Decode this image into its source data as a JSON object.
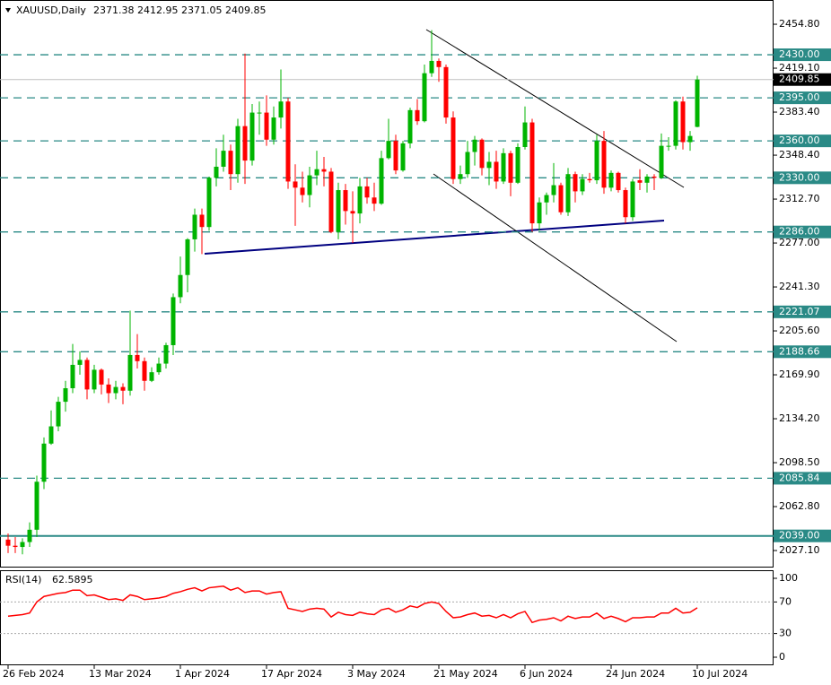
{
  "chart_data": {
    "type": "candlestick",
    "symbol": "XAUUSD,Daily",
    "up_color": "#00b400",
    "down_color": "#ff0000",
    "level_color": "#2a8a86",
    "ylim": [
      2014,
      2474.5
    ],
    "yticks": [
      {
        "value": 2454.8,
        "label": "2454.80"
      },
      {
        "value": 2419.1,
        "label": "2419.10"
      },
      {
        "value": 2383.4,
        "label": "2383.40"
      },
      {
        "value": 2348.4,
        "label": "2348.40"
      },
      {
        "value": 2312.7,
        "label": "2312.70"
      },
      {
        "value": 2277,
        "label": "2277.00"
      },
      {
        "value": 2241.3,
        "label": "2241.30"
      },
      {
        "value": 2205.6,
        "label": "2205.60"
      },
      {
        "value": 2169.9,
        "label": "2169.90"
      },
      {
        "value": 2134.2,
        "label": "2134.20"
      },
      {
        "value": 2098.5,
        "label": "2098.50"
      },
      {
        "value": 2062.8,
        "label": "2062.80"
      },
      {
        "value": 2027.1,
        "label": "2027.10"
      }
    ],
    "levels": [
      {
        "value": 2430,
        "label": "2430.00"
      },
      {
        "value": 2395,
        "label": "2395.00"
      },
      {
        "value": 2360,
        "label": "2360.00"
      },
      {
        "value": 2330,
        "label": "2330.00"
      },
      {
        "value": 2286,
        "label": "2286.00"
      },
      2221.07,
      2188.66,
      2085.84,
      {
        "value": 2039,
        "label": "2039.00"
      }
    ],
    "solid_level": 8,
    "current_price": 2409.85,
    "categories": [
      "26 Feb 2024",
      null,
      null,
      null,
      null,
      null,
      null,
      null,
      null,
      null,
      null,
      null,
      "13 Mar 2024",
      null,
      null,
      null,
      null,
      null,
      null,
      null,
      null,
      null,
      null,
      null,
      "1 Apr 2024",
      null,
      null,
      null,
      null,
      null,
      null,
      null,
      null,
      null,
      null,
      null,
      "17 Apr 2024",
      null,
      null,
      null,
      null,
      null,
      null,
      null,
      null,
      null,
      null,
      null,
      "3 May 2024",
      null,
      null,
      null,
      null,
      null,
      null,
      null,
      null,
      null,
      null,
      null,
      "21 May 2024",
      null,
      null,
      null,
      null,
      null,
      null,
      null,
      null,
      null,
      null,
      null,
      "6 Jun 2024",
      null,
      null,
      null,
      null,
      null,
      null,
      null,
      null,
      null,
      null,
      null,
      "24 Jun 2024",
      null,
      null,
      null,
      null,
      null,
      null,
      null,
      null,
      null,
      null,
      null,
      "10 Jul 2024"
    ],
    "ohlc": [
      [
        2036,
        2041,
        2025,
        2031
      ],
      [
        2031,
        2038,
        2025,
        2030
      ],
      [
        2030,
        2037,
        2024,
        2034
      ],
      [
        2034,
        2050,
        2030,
        2044
      ],
      [
        2044,
        2088,
        2038,
        2083
      ],
      [
        2083,
        2119,
        2077,
        2114
      ],
      [
        2114,
        2141,
        2113,
        2128
      ],
      [
        2128,
        2152,
        2124,
        2148
      ],
      [
        2148,
        2165,
        2140,
        2159
      ],
      [
        2159,
        2195,
        2155,
        2178
      ],
      [
        2178,
        2189,
        2170,
        2182
      ],
      [
        2182,
        2184,
        2150,
        2158
      ],
      [
        2158,
        2178,
        2155,
        2174
      ],
      [
        2174,
        2175,
        2154,
        2162
      ],
      [
        2162,
        2167,
        2147,
        2155
      ],
      [
        2155,
        2165,
        2150,
        2160
      ],
      [
        2160,
        2163,
        2146,
        2157
      ],
      [
        2157,
        2222,
        2153,
        2186
      ],
      [
        2186,
        2203,
        2175,
        2181
      ],
      [
        2181,
        2184,
        2157,
        2165
      ],
      [
        2165,
        2176,
        2164,
        2172
      ],
      [
        2172,
        2184,
        2170,
        2179
      ],
      [
        2179,
        2196,
        2175,
        2194
      ],
      [
        2194,
        2236,
        2186,
        2233
      ],
      [
        2233,
        2266,
        2228,
        2251
      ],
      [
        2251,
        2281,
        2237,
        2280
      ],
      [
        2280,
        2305,
        2270,
        2300
      ],
      [
        2300,
        2305,
        2268,
        2290
      ],
      [
        2290,
        2331,
        2287,
        2330
      ],
      [
        2330,
        2354,
        2323,
        2339
      ],
      [
        2339,
        2365,
        2335,
        2352
      ],
      [
        2352,
        2357,
        2320,
        2333
      ],
      [
        2333,
        2378,
        2326,
        2372
      ],
      [
        2372,
        2431,
        2325,
        2344
      ],
      [
        2344,
        2390,
        2340,
        2383
      ],
      [
        2383,
        2392,
        2365,
        2383
      ],
      [
        2383,
        2397,
        2356,
        2361
      ],
      [
        2361,
        2388,
        2357,
        2379
      ],
      [
        2379,
        2418,
        2370,
        2392
      ],
      [
        2392,
        2395,
        2321,
        2327
      ],
      [
        2327,
        2341,
        2291,
        2322
      ],
      [
        2322,
        2335,
        2310,
        2316
      ],
      [
        2316,
        2339,
        2306,
        2332
      ],
      [
        2332,
        2352,
        2324,
        2337
      ],
      [
        2337,
        2347,
        2323,
        2335
      ],
      [
        2335,
        2338,
        2285,
        2286
      ],
      [
        2286,
        2326,
        2280,
        2320
      ],
      [
        2320,
        2325,
        2292,
        2303
      ],
      [
        2303,
        2319,
        2277,
        2301
      ],
      [
        2301,
        2330,
        2293,
        2323
      ],
      [
        2323,
        2330,
        2309,
        2314
      ],
      [
        2314,
        2326,
        2303,
        2309
      ],
      [
        2309,
        2352,
        2308,
        2346
      ],
      [
        2346,
        2378,
        2345,
        2360
      ],
      [
        2360,
        2365,
        2333,
        2336
      ],
      [
        2336,
        2360,
        2335,
        2358
      ],
      [
        2358,
        2387,
        2354,
        2385
      ],
      [
        2385,
        2394,
        2373,
        2376
      ],
      [
        2376,
        2422,
        2375,
        2415
      ],
      [
        2415,
        2450,
        2412,
        2425
      ],
      [
        2425,
        2427,
        2408,
        2420
      ],
      [
        2420,
        2422,
        2374,
        2379
      ],
      [
        2379,
        2384,
        2325,
        2329
      ],
      [
        2329,
        2340,
        2325,
        2333
      ],
      [
        2333,
        2360,
        2330,
        2351
      ],
      [
        2351,
        2364,
        2340,
        2361
      ],
      [
        2361,
        2362,
        2332,
        2338
      ],
      [
        2338,
        2351,
        2324,
        2343
      ],
      [
        2343,
        2352,
        2321,
        2327
      ],
      [
        2327,
        2354,
        2325,
        2350
      ],
      [
        2350,
        2352,
        2315,
        2326
      ],
      [
        2326,
        2358,
        2325,
        2355
      ],
      [
        2355,
        2388,
        2353,
        2375
      ],
      [
        2375,
        2378,
        2286,
        2293
      ],
      [
        2293,
        2314,
        2287,
        2310
      ],
      [
        2310,
        2318,
        2300,
        2316
      ],
      [
        2316,
        2342,
        2310,
        2324
      ],
      [
        2324,
        2326,
        2300,
        2302
      ],
      [
        2302,
        2338,
        2299,
        2333
      ],
      [
        2333,
        2335,
        2310,
        2319
      ],
      [
        2319,
        2333,
        2316,
        2329
      ],
      [
        2329,
        2334,
        2326,
        2328
      ],
      [
        2328,
        2365,
        2325,
        2360
      ],
      [
        2360,
        2368,
        2317,
        2322
      ],
      [
        2322,
        2336,
        2319,
        2334
      ],
      [
        2334,
        2335,
        2318,
        2320
      ],
      [
        2320,
        2322,
        2293,
        2298
      ],
      [
        2298,
        2329,
        2295,
        2327
      ],
      [
        2328,
        2337,
        2320,
        2326
      ],
      [
        2326,
        2333,
        2318,
        2331
      ],
      [
        2331,
        2333,
        2320,
        2330
      ],
      [
        2330,
        2366,
        2329,
        2356
      ],
      [
        2356,
        2363,
        2352,
        2356
      ],
      [
        2356,
        2393,
        2353,
        2392
      ],
      [
        2392,
        2396,
        2353,
        2359
      ],
      [
        2359,
        2368,
        2352,
        2364
      ],
      [
        2371.38,
        2412.95,
        2371.05,
        2409.85
      ]
    ],
    "rsi": {
      "name": "RSI(14)",
      "color": "#ff0000",
      "ylim": [
        0,
        100
      ],
      "yticks": [
        100,
        70,
        30,
        0
      ],
      "levels": [
        70,
        30
      ],
      "values": [
        52,
        53,
        54,
        56,
        70,
        77,
        79,
        81,
        82,
        85,
        85,
        78,
        79,
        76,
        73,
        74,
        72,
        79,
        77,
        73,
        74,
        75,
        77,
        81,
        83,
        86,
        88,
        84,
        88,
        89,
        90,
        85,
        88,
        82,
        84,
        84,
        80,
        82,
        83,
        62,
        60,
        58,
        61,
        62,
        61,
        51,
        57,
        54,
        53,
        57,
        55,
        54,
        60,
        62,
        57,
        60,
        65,
        63,
        68,
        70,
        68,
        58,
        50,
        51,
        54,
        56,
        52,
        53,
        50,
        54,
        50,
        55,
        58,
        44,
        47,
        48,
        50,
        46,
        52,
        49,
        51,
        51,
        56,
        49,
        52,
        49,
        45,
        50,
        50,
        51,
        51,
        56,
        56,
        62,
        56,
        57,
        62.5895
      ]
    }
  }
}
